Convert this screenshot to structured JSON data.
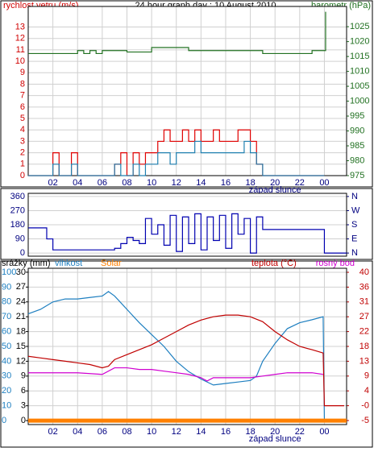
{
  "chart_data": [
    {
      "type": "line",
      "title": "24 hour graph day : 10 August 2010",
      "ylabel": "rychlost vetru (m/s)",
      "y2label": "barometr (hPa)",
      "annotation": {
        "text": "západ slunce",
        "x": 20
      },
      "xlim": [
        0,
        25.8
      ],
      "xticks": [
        {
          "value": 2,
          "label": "02"
        },
        {
          "value": 4,
          "label": "04"
        },
        {
          "value": 6,
          "label": "06"
        },
        {
          "value": 8,
          "label": "08"
        },
        10,
        12,
        14,
        16,
        18,
        20,
        22,
        {
          "value": 24,
          "label": "00"
        }
      ],
      "ylim": [
        0,
        14.8
      ],
      "yticks": [
        0,
        1,
        2,
        3,
        4,
        5,
        6,
        7,
        8,
        9,
        10,
        11,
        12,
        13
      ],
      "y2lim": [
        975,
        1031.8
      ],
      "y2ticks": [
        975,
        980,
        985,
        990,
        995,
        1000,
        1005,
        1010,
        1015,
        1020,
        1025
      ],
      "series": [
        {
          "color": "#e00000",
          "step": true,
          "x": [
            0,
            0.5,
            1,
            1.5,
            2,
            2.5,
            3,
            3.5,
            4,
            4.5,
            5,
            5.5,
            6,
            6.5,
            7,
            7.5,
            8,
            8.5,
            9,
            9.5,
            10,
            10.5,
            11,
            11.5,
            12,
            12.5,
            13,
            13.5,
            14,
            14.5,
            15,
            15.5,
            16,
            16.5,
            17,
            17.5,
            18,
            18.5,
            19,
            19.5,
            20,
            20.5,
            21,
            21.5,
            22,
            22.5,
            23,
            23.5,
            24
          ],
          "values": [
            0,
            0,
            0,
            0,
            2,
            0,
            0,
            2,
            0,
            0,
            0,
            0,
            0,
            0,
            1,
            2,
            0,
            2,
            1,
            2,
            2,
            3,
            4,
            3,
            3,
            4,
            3,
            4,
            3,
            3,
            4,
            3,
            3,
            3,
            4,
            4,
            3,
            1,
            0,
            0,
            0,
            0,
            0,
            0,
            0,
            0,
            0,
            0,
            0
          ]
        },
        {
          "color": "#2080b0",
          "step": true,
          "x": [
            0,
            0.5,
            1,
            1.5,
            2,
            2.5,
            3,
            3.5,
            4,
            4.5,
            5,
            5.5,
            6,
            6.5,
            7,
            7.5,
            8,
            8.5,
            9,
            9.5,
            10,
            10.5,
            11,
            11.5,
            12,
            12.5,
            13,
            13.5,
            14,
            14.5,
            15,
            15.5,
            16,
            16.5,
            17,
            17.5,
            18,
            18.5,
            19,
            19.5,
            20,
            20.5,
            21,
            21.5,
            22,
            22.5,
            23,
            23.5,
            24
          ],
          "values": [
            0,
            0,
            0,
            0,
            1,
            0,
            0,
            1,
            0,
            0,
            0,
            0,
            0,
            0,
            1,
            0,
            0,
            1,
            0,
            1,
            1,
            2,
            2,
            1,
            2,
            2,
            2,
            3,
            2,
            2,
            2,
            2,
            2,
            2,
            2,
            3,
            2,
            1,
            0,
            0,
            0,
            0,
            0,
            0,
            0,
            0,
            0,
            0,
            0
          ]
        },
        {
          "color": "#207020",
          "step": true,
          "axis": "y2",
          "x": [
            0,
            4,
            4.5,
            5,
            5.5,
            6,
            8,
            10,
            13,
            19,
            22,
            23,
            24,
            24.1
          ],
          "values": [
            1016,
            1017,
            1016,
            1017,
            1016,
            1017,
            1016.5,
            1018,
            1017,
            1016,
            1016,
            1017,
            1017,
            1030
          ]
        }
      ]
    },
    {
      "type": "line",
      "xlim": [
        0,
        25.8
      ],
      "ylim": [
        -20,
        380
      ],
      "yticks": [
        0,
        90,
        180,
        270,
        360
      ],
      "y2lim": [
        -20,
        380
      ],
      "y2ticks": [
        {
          "value": 360,
          "label": "N"
        },
        {
          "value": 270,
          "label": "W"
        },
        {
          "value": 180,
          "label": "S"
        },
        {
          "value": 90,
          "label": "E"
        },
        {
          "value": 0,
          "label": "N"
        }
      ],
      "series": [
        {
          "color": "#0000b0",
          "step": true,
          "x": [
            0,
            0.5,
            1,
            1.5,
            2,
            2.5,
            3,
            3.5,
            4,
            4.5,
            5,
            5.5,
            6,
            6.5,
            7,
            7.5,
            8,
            8.5,
            9,
            9.5,
            10,
            10.5,
            11,
            11.5,
            12,
            12.5,
            13,
            13.5,
            14,
            14.5,
            15,
            15.5,
            16,
            16.5,
            17,
            17.5,
            18,
            18.5,
            19,
            19.5,
            20,
            20.5,
            21,
            21.5,
            22,
            22.5,
            23,
            23.5,
            24,
            25.8
          ],
          "values": [
            160,
            160,
            160,
            90,
            20,
            20,
            20,
            20,
            20,
            20,
            20,
            20,
            20,
            20,
            30,
            60,
            100,
            80,
            60,
            220,
            120,
            180,
            50,
            240,
            10,
            230,
            60,
            250,
            20,
            230,
            80,
            240,
            30,
            250,
            120,
            220,
            0,
            230,
            150,
            150,
            150,
            150,
            150,
            150,
            150,
            150,
            150,
            150,
            0,
            0
          ]
        }
      ]
    },
    {
      "type": "line",
      "annotation": {
        "text": "západ slunce",
        "x": 20
      },
      "xlim": [
        0,
        25.8
      ],
      "xticks": [
        {
          "value": 2,
          "label": "02"
        },
        {
          "value": 4,
          "label": "04"
        },
        {
          "value": 6,
          "label": "06"
        },
        {
          "value": 8,
          "label": "08"
        },
        10,
        12,
        14,
        16,
        18,
        20,
        22,
        {
          "value": 24,
          "label": "00"
        }
      ],
      "ylim": [
        -2.7,
        102.7
      ],
      "yticks": [
        0,
        10,
        20,
        30,
        40,
        50,
        60,
        70,
        80,
        90,
        100
      ],
      "y3lim": [
        -0.8,
        30.8
      ],
      "y3ticks": [
        0,
        3,
        6,
        9,
        12,
        15,
        18,
        21,
        24,
        27,
        30
      ],
      "y2lim": [
        -6.22,
        41.22
      ],
      "y2ticks": [
        -5,
        {
          "value": -0.5,
          "label": "-0"
        },
        4,
        {
          "value": 8.5,
          "label": "9"
        },
        13,
        {
          "value": 17.5,
          "label": "18"
        },
        22,
        {
          "value": 26.5,
          "label": "27"
        },
        31,
        {
          "value": 35.5,
          "label": "36"
        },
        40
      ],
      "series": [
        {
          "name": "srážky (mm)",
          "color": "#000000",
          "axis": "y3",
          "x": [
            0,
            25.8
          ],
          "values": [
            0,
            0
          ]
        },
        {
          "name": "vlhkost",
          "color": "#1e7fc0",
          "x": [
            0,
            1,
            2,
            3,
            4,
            5,
            6,
            6.5,
            7,
            8,
            9,
            10,
            11,
            12,
            13,
            14,
            15,
            16,
            17,
            18,
            18.5,
            19,
            20,
            21,
            22,
            23,
            23.9,
            24
          ],
          "values": [
            72,
            75,
            80,
            82,
            82,
            83,
            84,
            87,
            84,
            75,
            66,
            58,
            50,
            40,
            33,
            28,
            24,
            25,
            26,
            27,
            30,
            40,
            52,
            62,
            66,
            68,
            70,
            0
          ]
        },
        {
          "name": "Solar",
          "color": "#ff8000",
          "axis": "y3",
          "width": 5,
          "x": [
            0,
            25.8
          ],
          "values": [
            0,
            0
          ]
        },
        {
          "name": "teplota (°C)",
          "color": "#c00000",
          "axis": "y2",
          "x": [
            0,
            1,
            2,
            3,
            4,
            5,
            6,
            6.5,
            7,
            8,
            9,
            10,
            11,
            12,
            13,
            14,
            15,
            16,
            17,
            18,
            19,
            20,
            21,
            22,
            23,
            23.9,
            24,
            25.6
          ],
          "values": [
            14.5,
            14,
            13.5,
            13,
            12.5,
            12,
            11,
            11.5,
            13.5,
            15,
            16.5,
            18,
            20,
            22,
            24,
            25.5,
            26.5,
            27,
            27,
            26.5,
            25,
            22,
            19.5,
            17.5,
            16.5,
            15.5,
            -0.5,
            -0.5
          ]
        },
        {
          "name": "rosný bod",
          "color": "#d000d0",
          "axis": "y2",
          "x": [
            0,
            2,
            4,
            6,
            7,
            8,
            9,
            10,
            11,
            12,
            13,
            14,
            14.5,
            15,
            16,
            17,
            18,
            19,
            20,
            21,
            22,
            23,
            23.9
          ],
          "values": [
            9.5,
            9.5,
            9.5,
            9,
            11,
            11,
            10.5,
            10.5,
            10,
            9.5,
            9,
            8,
            7,
            8,
            8,
            8,
            8,
            8.5,
            9,
            9.5,
            9.5,
            9.5,
            9
          ]
        }
      ]
    }
  ]
}
